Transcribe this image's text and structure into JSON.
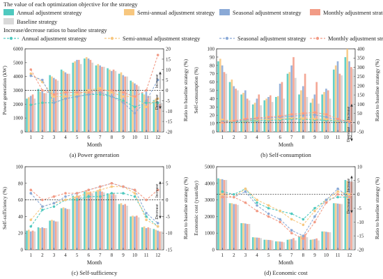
{
  "legend": {
    "header1": "The value of each optimization objective for the strategy",
    "header2": "Increase/decrease ratios  to baseline strategy",
    "items": [
      {
        "label": "Annual adjustment strategy",
        "color": "#4fc9bf"
      },
      {
        "label": "Semi-annual adjustment strategy",
        "color": "#f7c77f"
      },
      {
        "label": "Seasonal adjustment strategy",
        "color": "#8aa9d6"
      },
      {
        "label": "Monthly adjustment strategy",
        "color": "#f29b86"
      },
      {
        "label": "Baseline strategy",
        "color": "#d9d9d9"
      }
    ],
    "line_items": [
      {
        "label": "Annual adjustment strategy",
        "color": "#4fc9bf"
      },
      {
        "label": "Semi-annual adjustment strategy",
        "color": "#f7c77f"
      },
      {
        "label": "Seasonal adjustment strategy",
        "color": "#8aa9d6"
      },
      {
        "label": "Monthly adjustment strategy",
        "color": "#f29b86"
      }
    ]
  },
  "chart_data": [
    {
      "type": "bar",
      "caption": "(a) Power generation",
      "xlabel": "Month",
      "ylabel": "Power generation (kW)",
      "y2label": "Ratio to baseline strategy (%)",
      "ylim": [
        0,
        6000
      ],
      "yticks": [
        0,
        1000,
        2000,
        3000,
        4000,
        5000,
        6000
      ],
      "y2lim": [
        -20,
        20
      ],
      "y2ticks": [
        -20,
        -15,
        -10,
        -5,
        0,
        5,
        10,
        15,
        20
      ],
      "increase_label": "Increase",
      "decrease_label": "Decrease",
      "categories": [
        "1",
        "2",
        "3",
        "4",
        "5",
        "6",
        "7",
        "8",
        "9",
        "10",
        "11",
        "12"
      ],
      "series": [
        {
          "name": "Annual adjustment strategy",
          "values": [
            2400,
            3100,
            4100,
            4500,
            5000,
            5300,
            4800,
            4600,
            4200,
            3700,
            2800,
            2300
          ]
        },
        {
          "name": "Semi-annual adjustment strategy",
          "values": [
            2500,
            2900,
            4000,
            4400,
            5100,
            5400,
            4900,
            4500,
            4300,
            3600,
            2700,
            2400
          ]
        },
        {
          "name": "Seasonal adjustment strategy",
          "values": [
            2600,
            3000,
            3900,
            4300,
            5200,
            5300,
            4800,
            4400,
            4100,
            3500,
            2900,
            2200
          ]
        },
        {
          "name": "Monthly adjustment strategy",
          "values": [
            2700,
            2800,
            3800,
            4200,
            5200,
            5200,
            4700,
            4500,
            4000,
            3400,
            2600,
            2000
          ]
        },
        {
          "name": "Baseline strategy",
          "values": [
            2400,
            2800,
            3700,
            4200,
            4900,
            5000,
            4700,
            4400,
            4000,
            3300,
            2600,
            2100
          ]
        }
      ],
      "ratio_series": [
        {
          "name": "Annual adjustment strategy",
          "values": [
            -7,
            -6,
            -6,
            -4,
            -3,
            -2,
            -2,
            -3,
            -5,
            -8,
            -6,
            -6
          ]
        },
        {
          "name": "Semi-annual adjustment strategy",
          "values": [
            8,
            4,
            -3,
            -3,
            -2,
            0,
            1,
            -1,
            -3,
            -3,
            -8,
            -4
          ]
        },
        {
          "name": "Seasonal adjustment strategy",
          "values": [
            7,
            5,
            -6,
            -4,
            -3,
            -2,
            -1,
            -3,
            -6,
            -11,
            -5,
            5
          ]
        },
        {
          "name": "Monthly adjustment strategy",
          "values": [
            10,
            0,
            -2,
            -1,
            -1,
            -1,
            0,
            0,
            -1,
            -3,
            0,
            17
          ]
        }
      ]
    },
    {
      "type": "bar",
      "caption": "(b) Self-consumption",
      "xlabel": "Month",
      "ylabel": "Self-consumption (%)",
      "y2label": "Ratio to baseline strategy (%)",
      "ylim": [
        0,
        100
      ],
      "yticks": [
        0,
        10,
        20,
        30,
        40,
        50,
        60,
        70,
        80,
        90,
        100
      ],
      "y2lim": [
        -50,
        400
      ],
      "y2ticks": [
        -50,
        0,
        50,
        100,
        150,
        200,
        250,
        300,
        350,
        400
      ],
      "increase_label": "Increase",
      "decrease_label": "Decrease",
      "categories": [
        "1",
        "2",
        "3",
        "4",
        "5",
        "6",
        "7",
        "8",
        "9",
        "10",
        "11",
        "12"
      ],
      "series": [
        {
          "name": "Annual adjustment strategy",
          "values": [
            85,
            60,
            45,
            33,
            38,
            42,
            70,
            45,
            35,
            45,
            75,
            90
          ]
        },
        {
          "name": "Semi-annual adjustment strategy",
          "values": [
            88,
            63,
            47,
            35,
            40,
            43,
            72,
            50,
            40,
            48,
            80,
            100
          ]
        },
        {
          "name": "Seasonal adjustment strategy",
          "values": [
            80,
            55,
            50,
            40,
            42,
            58,
            80,
            55,
            45,
            52,
            85,
            85
          ]
        },
        {
          "name": "Monthly adjustment strategy",
          "values": [
            72,
            52,
            40,
            45,
            44,
            60,
            90,
            70,
            60,
            50,
            70,
            78
          ]
        },
        {
          "name": "Baseline strategy",
          "values": [
            70,
            50,
            38,
            32,
            36,
            40,
            65,
            42,
            34,
            40,
            68,
            76
          ]
        }
      ],
      "ratio_series": [
        {
          "name": "Annual adjustment strategy",
          "values": [
            10,
            5,
            8,
            10,
            12,
            15,
            20,
            18,
            15,
            12,
            8,
            5
          ]
        },
        {
          "name": "Semi-annual adjustment strategy",
          "values": [
            15,
            10,
            12,
            15,
            18,
            20,
            25,
            22,
            20,
            18,
            10,
            8
          ]
        },
        {
          "name": "Seasonal adjustment strategy",
          "values": [
            5,
            8,
            15,
            22,
            25,
            30,
            35,
            40,
            42,
            30,
            15,
            0
          ]
        },
        {
          "name": "Monthly adjustment strategy",
          "values": [
            0,
            10,
            20,
            25,
            30,
            35,
            45,
            50,
            55,
            45,
            20,
            5
          ]
        }
      ]
    },
    {
      "type": "bar",
      "caption": "(c) Self-sufficiency",
      "xlabel": "Month",
      "ylabel": "Self-sufficiency (%)",
      "y2label": "Ratio to baseline strategy (%)",
      "ylim": [
        0,
        100
      ],
      "yticks": [
        0,
        20,
        40,
        60,
        80,
        100
      ],
      "y2lim": [
        -15,
        10
      ],
      "y2ticks": [
        -15,
        -10,
        -5,
        0,
        5,
        10
      ],
      "increase_label": "Increase",
      "decrease_label": "Decrease",
      "categories": [
        "1",
        "2",
        "3",
        "4",
        "5",
        "6",
        "7",
        "8",
        "9",
        "10",
        "11",
        "12"
      ],
      "series": [
        {
          "name": "Annual adjustment strategy",
          "values": [
            23,
            27,
            35,
            50,
            65,
            70,
            70,
            68,
            55,
            40,
            27,
            25
          ]
        },
        {
          "name": "Semi-annual adjustment strategy",
          "values": [
            24,
            26,
            36,
            51,
            64,
            71,
            72,
            67,
            56,
            41,
            28,
            24
          ]
        },
        {
          "name": "Seasonal adjustment strategy",
          "values": [
            22,
            27,
            35,
            50,
            66,
            69,
            71,
            66,
            54,
            40,
            26,
            23
          ]
        },
        {
          "name": "Monthly adjustment strategy",
          "values": [
            23,
            26,
            34,
            49,
            65,
            70,
            70,
            68,
            55,
            41,
            27,
            22
          ]
        },
        {
          "name": "Baseline strategy",
          "values": [
            22,
            26,
            34,
            49,
            64,
            68,
            69,
            66,
            53,
            39,
            26,
            22
          ]
        }
      ],
      "ratio_series": [
        {
          "name": "Annual adjustment strategy",
          "values": [
            -8,
            -3,
            -2,
            0,
            0,
            1,
            1,
            2,
            2,
            1,
            -5,
            -8
          ]
        },
        {
          "name": "Semi-annual adjustment strategy",
          "values": [
            -6,
            -2,
            -1,
            0,
            1,
            2,
            3,
            4,
            4,
            2,
            -6,
            -8
          ]
        },
        {
          "name": "Seasonal adjustment strategy",
          "values": [
            2,
            -2,
            -1,
            1,
            2,
            3,
            4,
            5,
            4,
            3,
            -4,
            -7
          ]
        },
        {
          "name": "Monthly adjustment strategy",
          "values": [
            3,
            0,
            1,
            2,
            2,
            3,
            4,
            5,
            4,
            3,
            0,
            3
          ]
        }
      ]
    },
    {
      "type": "bar",
      "caption": "(d) Economic cost",
      "xlabel": "Month",
      "ylabel": "Economic cost (yuan/day)",
      "y2label": "Ratio to baseline strategy (%)",
      "ylim": [
        0,
        5000
      ],
      "yticks": [
        0,
        1000,
        2000,
        3000,
        4000,
        5000
      ],
      "y2lim": [
        -20,
        10
      ],
      "y2ticks": [
        -20,
        -15,
        -10,
        -5,
        0,
        5,
        10
      ],
      "increase_label": "Increase",
      "decrease_label": "Decrease",
      "categories": [
        "1",
        "2",
        "3",
        "4",
        "5",
        "6",
        "7",
        "8",
        "9",
        "10",
        "11",
        "12"
      ],
      "series": [
        {
          "name": "Annual adjustment strategy",
          "values": [
            4300,
            2800,
            1600,
            750,
            600,
            500,
            600,
            800,
            600,
            1100,
            2800,
            4200
          ]
        },
        {
          "name": "Semi-annual adjustment strategy",
          "values": [
            4250,
            2800,
            1600,
            740,
            600,
            500,
            620,
            850,
            620,
            1100,
            2800,
            4150
          ]
        },
        {
          "name": "Seasonal adjustment strategy",
          "values": [
            4250,
            2750,
            1580,
            730,
            590,
            490,
            640,
            900,
            640,
            1080,
            2780,
            4150
          ]
        },
        {
          "name": "Monthly adjustment strategy",
          "values": [
            4200,
            2750,
            1550,
            720,
            580,
            480,
            700,
            950,
            680,
            1060,
            2760,
            4100
          ]
        },
        {
          "name": "Baseline strategy",
          "values": [
            4200,
            2700,
            1550,
            700,
            560,
            450,
            560,
            750,
            560,
            1050,
            2750,
            4100
          ]
        }
      ],
      "ratio_series": [
        {
          "name": "Annual adjustment strategy",
          "values": [
            1,
            0,
            2,
            -3,
            -5,
            -6,
            -7,
            -9,
            -5,
            -2,
            -1,
            -1
          ]
        },
        {
          "name": "Semi-annual adjustment strategy",
          "values": [
            0,
            -1,
            2,
            -2,
            -4,
            -6,
            -9,
            -11,
            -6,
            -2,
            1,
            0
          ]
        },
        {
          "name": "Seasonal adjustment strategy",
          "values": [
            -1,
            -1,
            1,
            -4,
            -7,
            -9,
            -13,
            -15,
            -8,
            -2,
            2,
            -1
          ]
        },
        {
          "name": "Monthly adjustment strategy",
          "values": [
            -1,
            -1,
            -3,
            -6,
            -8,
            -10,
            -14,
            -16,
            -10,
            -3,
            0,
            -1
          ]
        }
      ]
    }
  ]
}
